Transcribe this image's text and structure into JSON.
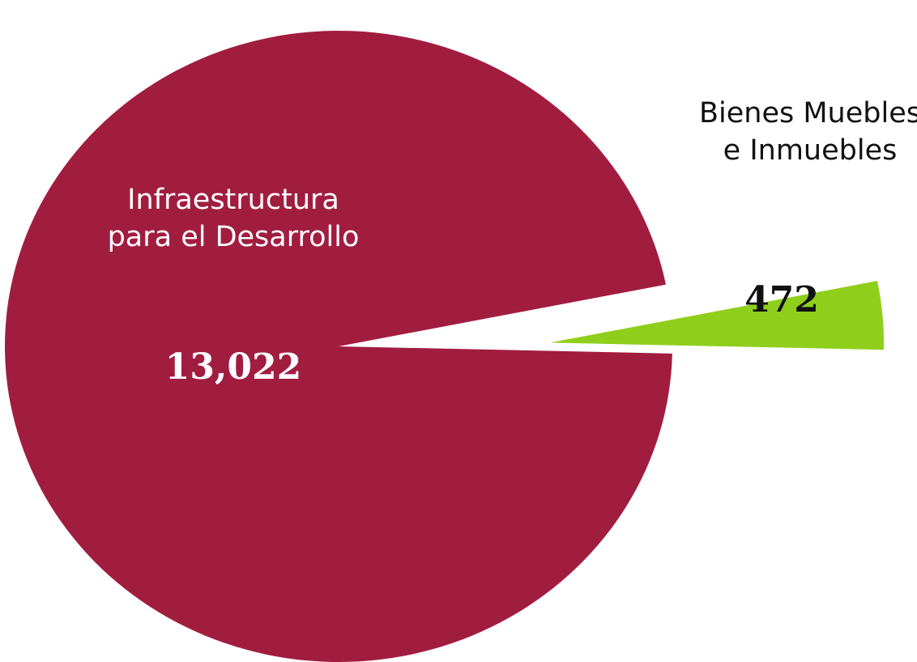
{
  "chart_data": {
    "type": "pie",
    "categories": [
      "Infraestructura para el Desarrollo",
      "Bienes Muebles e Inmuebles"
    ],
    "values": [
      13022,
      472
    ],
    "value_labels": [
      "13,022",
      "472"
    ],
    "colors": [
      "#a11d40",
      "#8fcf1c"
    ]
  }
}
